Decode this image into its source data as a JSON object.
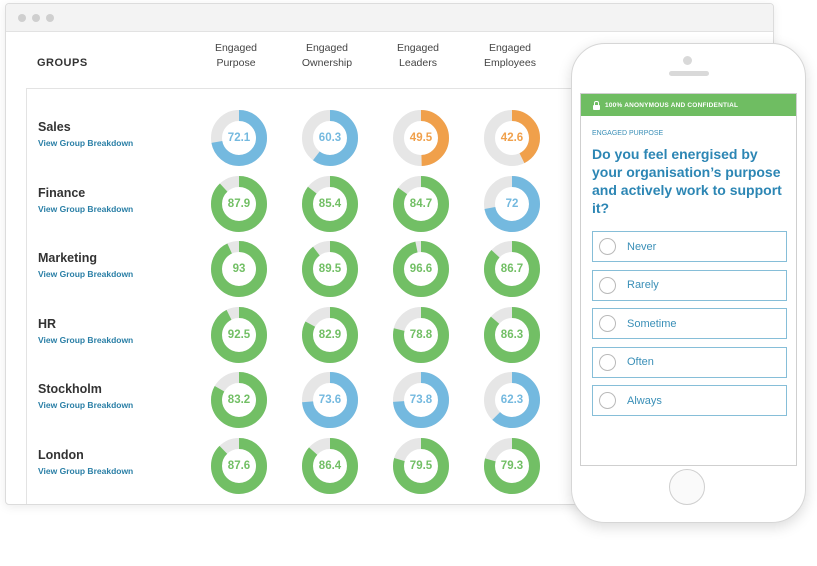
{
  "dashboard": {
    "groups_heading": "GROUPS",
    "columns": [
      {
        "line1": "Engaged",
        "line2": "Purpose"
      },
      {
        "line1": "Engaged",
        "line2": "Ownership"
      },
      {
        "line1": "Engaged",
        "line2": "Leaders"
      },
      {
        "line1": "Engaged",
        "line2": "Employees"
      }
    ],
    "link_label": "View Group Breakdown",
    "rows": [
      {
        "name": "Sales",
        "scores": [
          72.1,
          60.3,
          49.5,
          42.6
        ],
        "display": [
          "72.1",
          "60.3",
          "49.5",
          "42.6"
        ]
      },
      {
        "name": "Finance",
        "scores": [
          87.9,
          85.4,
          84.7,
          72
        ],
        "display": [
          "87.9",
          "85.4",
          "84.7",
          "72"
        ]
      },
      {
        "name": "Marketing",
        "scores": [
          93,
          89.5,
          96.6,
          86.7
        ],
        "display": [
          "93",
          "89.5",
          "96.6",
          "86.7"
        ]
      },
      {
        "name": "HR",
        "scores": [
          92.5,
          82.9,
          78.8,
          86.3
        ],
        "display": [
          "92.5",
          "82.9",
          "78.8",
          "86.3"
        ]
      },
      {
        "name": "Stockholm",
        "scores": [
          83.2,
          73.6,
          73.8,
          62.3
        ],
        "display": [
          "83.2",
          "73.6",
          "73.8",
          "62.3"
        ]
      },
      {
        "name": "London",
        "scores": [
          87.6,
          86.4,
          79.5,
          79.3
        ],
        "display": [
          "87.6",
          "86.4",
          "79.5",
          "79.3"
        ]
      }
    ],
    "colors": {
      "high": "#72bf65",
      "mid": "#74b9df",
      "low": "#f0a04b",
      "track": "#e6e6e6"
    }
  },
  "phone": {
    "secure_label": "100% ANONYMOUS AND CONFIDENTIAL",
    "question_category": "ENGAGED PURPOSE",
    "question": "Do you feel energised by your organisation’s purpose and actively work to support it?",
    "options": [
      "Never",
      "Rarely",
      "Sometime",
      "Often",
      "Always"
    ]
  }
}
